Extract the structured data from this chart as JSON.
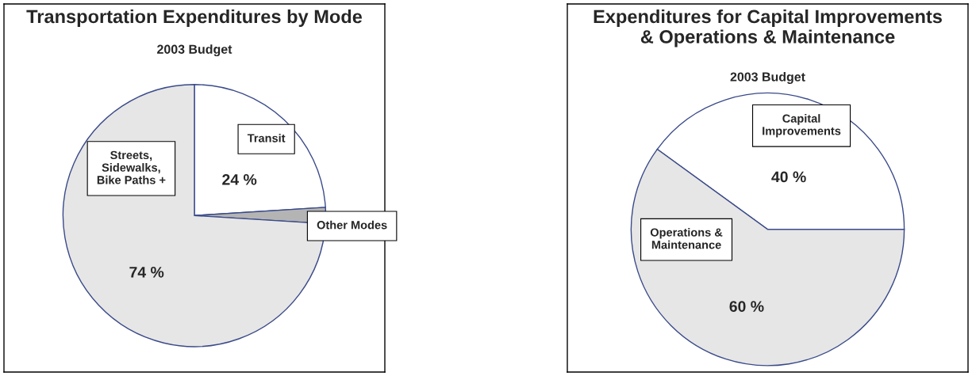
{
  "chart_data": [
    {
      "type": "pie",
      "title": "Transportation Expenditures by Mode",
      "subtitle": "2003 Budget",
      "categories": [
        "Transit",
        "Other Modes",
        "Streets,\nSidewalks,\nBike Paths +"
      ],
      "values": [
        24,
        2,
        74
      ],
      "colors": [
        "#ffffff",
        "#b4b4b4",
        "#e6e6e6"
      ],
      "value_labels": [
        "24 %",
        null,
        "74 %"
      ]
    },
    {
      "type": "pie",
      "title": "Expenditures for Capital Improvements\n& Operations & Maintenance",
      "subtitle": "2003 Budget",
      "categories": [
        "Capital\nImprovements",
        "Operations &\nMaintenance"
      ],
      "values": [
        40,
        60
      ],
      "colors": [
        "#ffffff",
        "#e6e6e6"
      ],
      "value_labels": [
        "40 %",
        "60 %"
      ]
    }
  ]
}
